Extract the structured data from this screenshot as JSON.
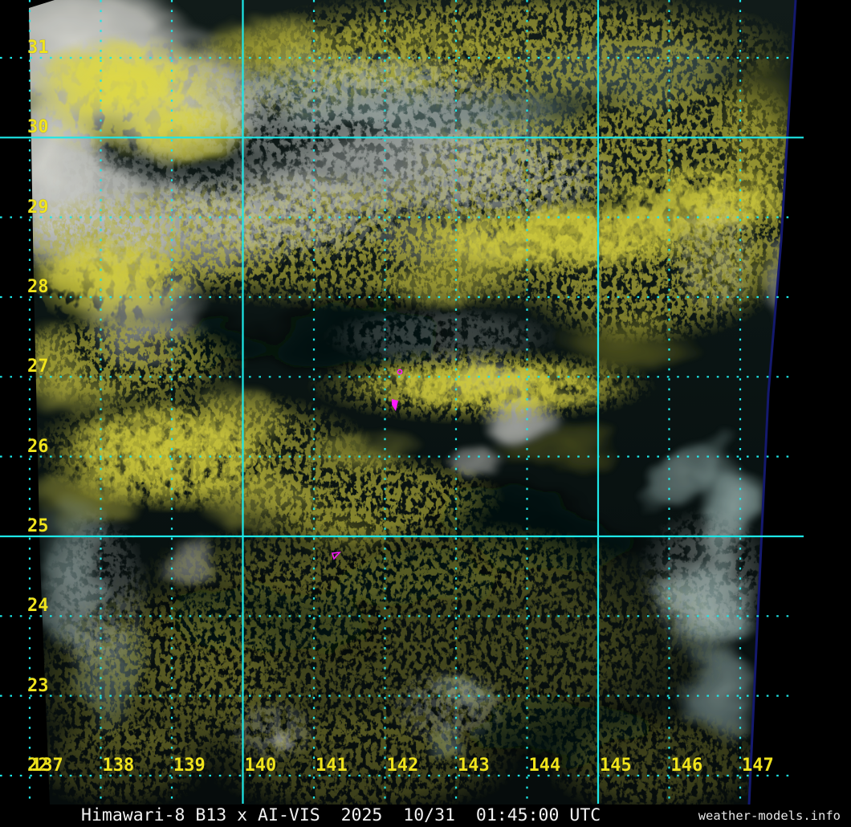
{
  "product": {
    "title_bar": "Himawari-8 B13 x AI-VIS  2025  10/31  01:45:00 UTC",
    "satellite": "Himawari-8",
    "band": "B13",
    "product_name": "AI-VIS",
    "year": "2025",
    "date": "10/31",
    "time": "01:45:00 UTC",
    "credit": "weather-models.info"
  },
  "graticule": {
    "latitude_labels": [
      "31",
      "30",
      "29",
      "28",
      "27",
      "26",
      "25",
      "24",
      "23",
      "22"
    ],
    "longitude_labels": [
      "137",
      "138",
      "139",
      "140",
      "141",
      "142",
      "143",
      "144",
      "145",
      "146",
      "147"
    ],
    "solid_latitudes": [
      "30",
      "25"
    ],
    "solid_longitudes": [
      "140",
      "145"
    ],
    "grid_color": "#1de8e8",
    "label_color": "#f0e41c"
  },
  "overlays": {
    "coastline_color": "#ff1aff"
  },
  "imagery": {
    "description": "Himawari-8 infrared B13 with AI-derived visible clouds",
    "background_color": "#0b1413",
    "cloud_yellow": "#d6d040",
    "cloud_white": "#d6d6d0",
    "cloud_pale_cyan": "#a9c6c3",
    "swath_edge_color": "#14196e"
  }
}
